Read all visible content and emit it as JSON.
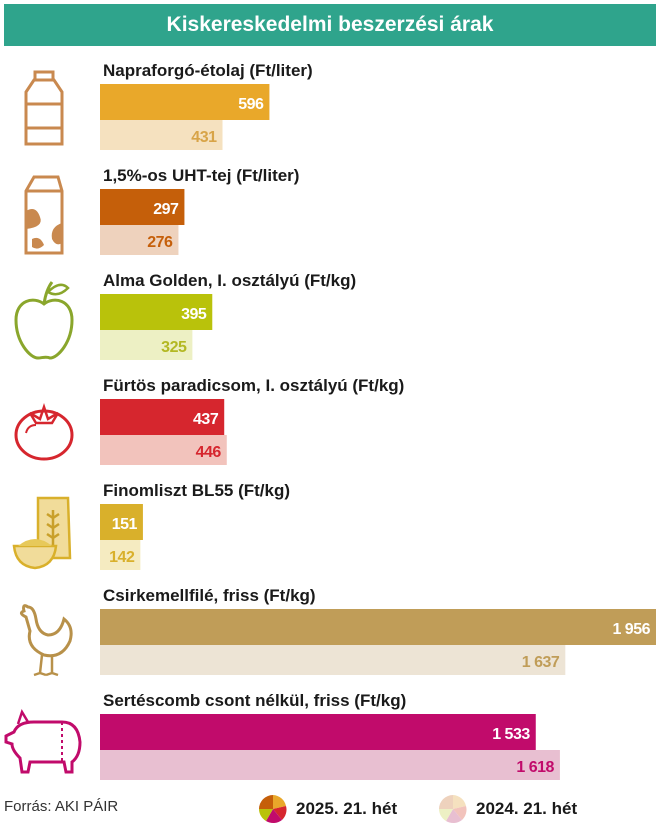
{
  "title": "Kiskereskedelmi beszerzési árak",
  "source": "Forrás: AKI PÁIR",
  "legend": {
    "current": "2025. 21. hét",
    "previous": "2024. 21. hét"
  },
  "chart_data": {
    "type": "bar",
    "orientation": "horizontal",
    "xlim": [
      0,
      1956
    ],
    "grid": false,
    "legend_position": "bottom",
    "series_names": [
      "2025. 21. hét",
      "2024. 21. hét"
    ],
    "categories": [
      {
        "label": "Napraforgó-étolaj (Ft/liter)",
        "icon": "oil-bottle-icon",
        "current": 596,
        "previous": 431,
        "current_display": "596",
        "previous_display": "431",
        "color": "#e9a82a",
        "light_color": "#f5e1bf",
        "prev_text_color": "#d8a448"
      },
      {
        "label": "1,5%-os UHT-tej (Ft/liter)",
        "icon": "milk-carton-icon",
        "current": 297,
        "previous": 276,
        "current_display": "297",
        "previous_display": "276",
        "color": "#c55f0a",
        "light_color": "#eed2bd",
        "prev_text_color": "#c55f0a"
      },
      {
        "label": "Alma Golden, I. osztályú (Ft/kg)",
        "icon": "apple-icon",
        "current": 395,
        "previous": 325,
        "current_display": "395",
        "previous_display": "325",
        "color": "#b9c20b",
        "light_color": "#edf0c4",
        "prev_text_color": "#b3b823"
      },
      {
        "label": "Fürtös paradicsom, I. osztályú (Ft/kg)",
        "icon": "tomato-icon",
        "current": 437,
        "previous": 446,
        "current_display": "437",
        "previous_display": "446",
        "color": "#d6262e",
        "light_color": "#f2c3bc",
        "prev_text_color": "#d6262e"
      },
      {
        "label": "Finomliszt BL55 (Ft/kg)",
        "icon": "flour-icon",
        "current": 151,
        "previous": 142,
        "current_display": "151",
        "previous_display": "142",
        "color": "#d9b02b",
        "light_color": "#f5ebc1",
        "prev_text_color": "#d9b02b"
      },
      {
        "label": "Csirkemellfilé, friss (Ft/kg)",
        "icon": "chicken-icon",
        "current": 1956,
        "previous": 1637,
        "current_display": "1 956",
        "previous_display": "1 637",
        "color": "#c09d58",
        "light_color": "#ede4d5",
        "prev_text_color": "#c09d58"
      },
      {
        "label": "Sertéscomb csont nélkül, friss (Ft/kg)",
        "icon": "pig-icon",
        "current": 1533,
        "previous": 1618,
        "current_display": "1 533",
        "previous_display": "1 618",
        "color": "#c10b6b",
        "light_color": "#e8bfd1",
        "prev_text_color": "#c10b6b"
      }
    ]
  }
}
